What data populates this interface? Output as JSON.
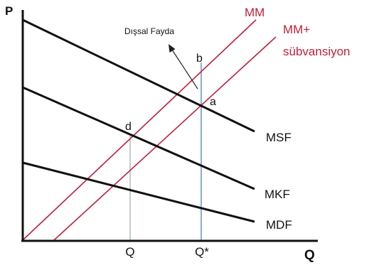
{
  "axes": {
    "y_label": "P",
    "x_label": "Q"
  },
  "curves": {
    "msf_label": "MSF",
    "mkf_label": "MKF",
    "mdf_label": "MDF",
    "mm_label": "MM",
    "mm_sub_label_line1": "MM+",
    "mm_sub_label_line2": "sübvansiyon"
  },
  "points": {
    "a": "a",
    "b": "b",
    "d": "d"
  },
  "quantities": {
    "q": "Q",
    "q_star": "Q*"
  },
  "annotation": {
    "external_benefit": "Dışsal Fayda"
  },
  "colors": {
    "demand_lines": "#111111",
    "supply_lines": "#c41e3a",
    "q_star_guide": "#3a78c9",
    "q_guide": "#9aa9b5"
  }
}
